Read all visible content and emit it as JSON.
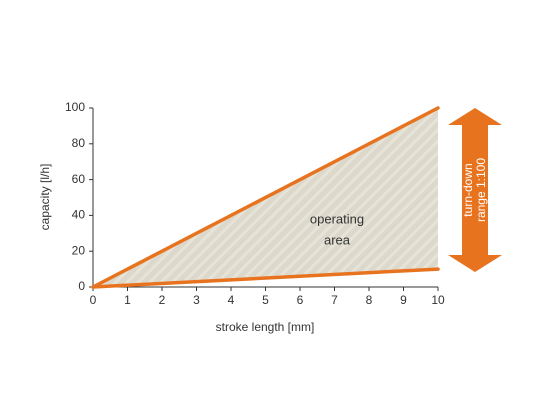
{
  "chart_data": {
    "type": "line",
    "x": [
      0,
      10
    ],
    "series": [
      {
        "color": "#e8731e",
        "values": [
          0,
          100
        ]
      },
      {
        "color": "#e8731e",
        "values": [
          0,
          10
        ]
      }
    ],
    "xlim": [
      0,
      10
    ],
    "xticks": [
      0,
      1,
      2,
      3,
      4,
      5,
      6,
      7,
      8,
      9,
      10
    ],
    "ylim": [
      0,
      100
    ],
    "yticks": [
      0,
      20,
      40,
      60,
      80,
      100
    ],
    "xlabel": "stroke length [mm]",
    "ylabel": "capacity [l/h]",
    "area_label": [
      "operating",
      "area"
    ],
    "range_label": [
      "turn-down",
      "range 1:100"
    ],
    "area_color": "#dcd9cc",
    "arrow_color": "#e8731e"
  }
}
